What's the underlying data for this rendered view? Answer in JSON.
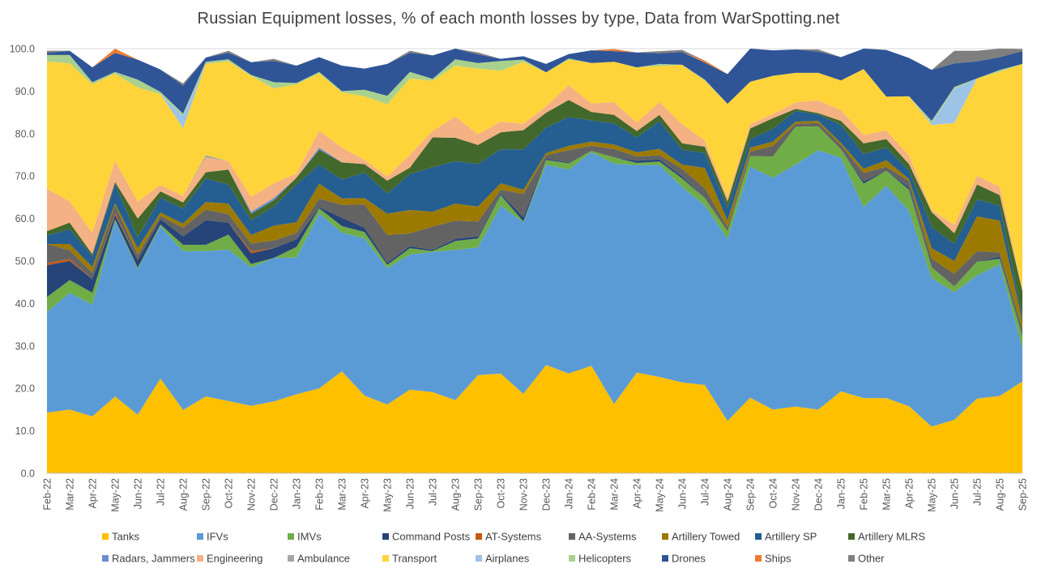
{
  "chart_data": {
    "type": "area",
    "stacked": true,
    "title": "Russian Equipment losses, % of each month losses by type, Data from WarSpotting.net",
    "xlabel": "",
    "ylabel": "",
    "ylim": [
      0,
      100
    ],
    "y_ticks": [
      "0.0",
      "10.0",
      "20.0",
      "30.0",
      "40.0",
      "50.0",
      "60.0",
      "70.0",
      "80.0",
      "90.0",
      "100.0"
    ],
    "grid": true,
    "legend_position": "bottom",
    "categories": [
      "Feb-22",
      "Mar-22",
      "Apr-22",
      "May-22",
      "Jun-22",
      "Jul-22",
      "Aug-22",
      "Sep-22",
      "Oct-22",
      "Nov-22",
      "Dec-22",
      "Jan-23",
      "Feb-23",
      "Mar-23",
      "Apr-23",
      "May-23",
      "Jun-23",
      "Jul-23",
      "Aug-23",
      "Sep-23",
      "Oct-23",
      "Nov-23",
      "Dec-23",
      "Jan-24",
      "Feb-24",
      "Mar-24",
      "Apr-24",
      "May-24",
      "Jun-24",
      "Jul-24",
      "Aug-24",
      "Sep-24",
      "Oct-24",
      "Nov-24",
      "Dec-24",
      "Jan-25",
      "Feb-25",
      "Mar-25",
      "Apr-25",
      "May-25",
      "Jun-25",
      "Jul-25",
      "Aug-25",
      "Sep-25"
    ],
    "series": [
      {
        "name": "Tanks",
        "color": "#FFC000",
        "values": [
          14.3,
          15.0,
          13.4,
          18.1,
          13.8,
          22.3,
          14.9,
          18.1,
          17.0,
          15.9,
          16.9,
          18.6,
          20.0,
          24.0,
          18.3,
          16.2,
          19.7,
          19.1,
          17.2,
          23.1,
          23.5,
          18.7,
          25.5,
          23.5,
          25.3,
          16.3,
          23.7,
          22.7,
          21.4,
          20.8,
          12.3,
          17.8,
          15.0,
          15.7,
          15.0,
          19.3,
          17.7,
          17.7,
          15.8,
          11.0,
          12.6,
          17.6,
          18.2,
          21.6
        ]
      },
      {
        "name": "IFVs",
        "color": "#5B9BD5",
        "values": [
          23.7,
          27.5,
          26.3,
          41.4,
          34.3,
          35.9,
          37.4,
          34.2,
          35.7,
          32.6,
          33.8,
          32.2,
          41.2,
          32.7,
          37.0,
          32.1,
          31.8,
          33.0,
          35.4,
          30.1,
          39.5,
          40.4,
          47.2,
          48.0,
          50.3,
          56.6,
          48.9,
          49.9,
          46.0,
          42.3,
          42.9,
          54.4,
          54.6,
          57.0,
          61.1,
          55.0,
          45.0,
          50.0,
          46.0,
          35.0,
          30.0,
          29.0,
          31.0,
          8.0
        ]
      },
      {
        "name": "IMVs",
        "color": "#70AD47",
        "values": [
          3.5,
          3.0,
          2.8,
          0.3,
          0.3,
          0.4,
          1.5,
          1.5,
          3.5,
          0.8,
          0,
          2.5,
          1.2,
          1.5,
          1.5,
          0.8,
          1.5,
          0.2,
          2.1,
          2.1,
          2.5,
          0.2,
          1.1,
          1.5,
          0.3,
          1.5,
          0.5,
          0.8,
          2.0,
          1.7,
          1.8,
          2.5,
          5.0,
          8.9,
          5.6,
          2.0,
          5.5,
          3.5,
          5.0,
          2.5,
          1.4,
          3.2,
          1.3,
          2.8
        ]
      },
      {
        "name": "Command Posts",
        "color": "#264478",
        "values": [
          7.5,
          4.5,
          3.2,
          1.0,
          1.8,
          1.2,
          2.0,
          5.8,
          2.8,
          2.5,
          2.3,
          1.8,
          0.3,
          2.0,
          1.0,
          0.5,
          0.5,
          0.3,
          0.5,
          0.5,
          0.3,
          1.0,
          0.3,
          0.2,
          0,
          0,
          0.5,
          0.5,
          0.5,
          0,
          0,
          0,
          0,
          0,
          0,
          0,
          0.5,
          0,
          0.5,
          0,
          0,
          0,
          0.5,
          0.5
        ]
      },
      {
        "name": "AT-Systems",
        "color": "#C55A11",
        "values": [
          0.5,
          0.5,
          0,
          0.5,
          0,
          0,
          0,
          0,
          0,
          0.5,
          0,
          0,
          0,
          0,
          0,
          0,
          0,
          0,
          0,
          0,
          0,
          0,
          0,
          0,
          0,
          0,
          0,
          0,
          0,
          0,
          0,
          0,
          0,
          0,
          0,
          0,
          0,
          0,
          0,
          0,
          0,
          0,
          0,
          0
        ]
      },
      {
        "name": "AA-Systems",
        "color": "#636363",
        "values": [
          4.5,
          2.0,
          1.5,
          1.8,
          1.2,
          0.8,
          2.0,
          2.5,
          2.0,
          1.8,
          1.8,
          1.5,
          2.0,
          3.0,
          5.5,
          6.5,
          3.0,
          5.5,
          4.3,
          3.5,
          1.0,
          5.5,
          0.8,
          2.9,
          1.2,
          2.0,
          1.0,
          1.0,
          1.8,
          2.3,
          1.0,
          1.0,
          2.5,
          0.7,
          0.8,
          1.0,
          2.0,
          1.0,
          1.5,
          2.0,
          3.0,
          2.5,
          1.0,
          1.0
        ]
      },
      {
        "name": "Artillery Towed",
        "color": "#9C7A00",
        "values": [
          0,
          1.5,
          1.4,
          0.5,
          1.6,
          0.8,
          1.0,
          1.8,
          2.5,
          2.0,
          3.5,
          2.5,
          3.5,
          1.5,
          1.5,
          5.0,
          5.5,
          3.5,
          4.0,
          3.5,
          1.5,
          1.0,
          0.5,
          1.0,
          1.0,
          1.0,
          1.0,
          1.5,
          1.0,
          4.8,
          1.5,
          1.0,
          1.0,
          0.5,
          0.5,
          0.5,
          1.0,
          1.5,
          0.5,
          2.5,
          3.0,
          8.2,
          7.5,
          2.0
        ]
      },
      {
        "name": "Artillery SP",
        "color": "#255E91",
        "values": [
          2.0,
          3.5,
          2.5,
          4.5,
          2.5,
          3.5,
          3.5,
          5.5,
          4.5,
          3.5,
          4.5,
          9.0,
          4.5,
          4.5,
          6.0,
          4.8,
          8.5,
          10.5,
          10.0,
          10.0,
          8.0,
          9.5,
          6.0,
          6.8,
          5.0,
          5.0,
          3.5,
          6.5,
          3.5,
          3.5,
          3.0,
          2.0,
          3.0,
          2.5,
          1.5,
          4.2,
          3.5,
          3.0,
          2.0,
          5.0,
          4.0,
          4.0,
          3.5,
          1.0
        ]
      },
      {
        "name": "Artillery MLRS",
        "color": "#43682B",
        "values": [
          1.0,
          1.5,
          0.5,
          0.5,
          4.5,
          1.5,
          1.5,
          1.5,
          3.5,
          1.5,
          1.5,
          1.5,
          3.5,
          4.0,
          2.0,
          3.0,
          1.5,
          7.0,
          5.5,
          4.5,
          4.0,
          4.5,
          3.5,
          4.0,
          2.0,
          2.0,
          1.5,
          1.5,
          1.5,
          1.5,
          1.5,
          2.5,
          2.5,
          0.5,
          0.3,
          1.0,
          2.5,
          2.0,
          1.5,
          3.5,
          2.5,
          3.5,
          2.5,
          6.0
        ]
      },
      {
        "name": "Radars, Jammers",
        "color": "#698ED0",
        "values": [
          0,
          0,
          0,
          0,
          0,
          0,
          0,
          0,
          0,
          0.5,
          0.5,
          0,
          0.5,
          0,
          0,
          0,
          0,
          0,
          0,
          0,
          0,
          0,
          0,
          0,
          0,
          0,
          0,
          0,
          0,
          0,
          0,
          0,
          0,
          0,
          0,
          0,
          0,
          0,
          0,
          0,
          0,
          0,
          0,
          0
        ]
      },
      {
        "name": "Engineering",
        "color": "#F4B183",
        "values": [
          10.0,
          5.0,
          5.0,
          5.0,
          4.0,
          1.5,
          1.5,
          3.5,
          2.0,
          3.5,
          3.5,
          1.0,
          4.0,
          3.5,
          1.0,
          1.0,
          3.0,
          1.5,
          5.0,
          2.5,
          2.5,
          1.5,
          1.5,
          3.5,
          2.0,
          3.0,
          2.0,
          3.0,
          4.5,
          1.5,
          1.0,
          1.0,
          1.0,
          1.5,
          3.0,
          2.5,
          2.0,
          2.0,
          2.0,
          0.5,
          2.0,
          2.0,
          2.0,
          0.5
        ]
      },
      {
        "name": "Ambulance",
        "color": "#A5A5A5",
        "values": [
          0,
          0,
          0,
          0,
          0,
          0,
          0,
          0.5,
          0,
          0,
          0,
          0,
          0,
          0,
          0,
          0,
          0,
          0,
          0,
          0,
          0,
          0,
          0,
          0,
          0,
          0,
          0,
          0,
          0,
          0,
          0,
          0,
          0,
          0,
          0,
          0,
          0,
          0,
          0,
          0,
          0,
          0,
          0,
          0
        ]
      },
      {
        "name": "Transport",
        "color": "#FFD43B",
        "values": [
          30.0,
          32.5,
          35.0,
          20.5,
          26.9,
          21.4,
          16.0,
          21.5,
          23.5,
          28.5,
          22.3,
          21.0,
          13.5,
          13.0,
          15.0,
          17.0,
          18.0,
          11.8,
          12.0,
          15.5,
          12.0,
          14.6,
          8.0,
          6.0,
          9.5,
          9.5,
          13.0,
          8.5,
          14.0,
          14.0,
          22.0,
          10.0,
          9.0,
          7.0,
          6.5,
          7.0,
          15.5,
          8.0,
          14.0,
          20.0,
          24.0,
          23.0,
          27.0,
          53.0
        ]
      },
      {
        "name": "Airplanes",
        "color": "#9DC3E6",
        "values": [
          0,
          0,
          0,
          0,
          0,
          0,
          2.9,
          0,
          0,
          0,
          0,
          0,
          0,
          0,
          0,
          0,
          0,
          0,
          0,
          0,
          0,
          0,
          0,
          0,
          0,
          0,
          0,
          0,
          0,
          0,
          0,
          0,
          0,
          0,
          0,
          0,
          0,
          0,
          0,
          0.5,
          8.0,
          0,
          0,
          0
        ]
      },
      {
        "name": "Helicopters",
        "color": "#A9D18E",
        "values": [
          1.5,
          2.0,
          0.5,
          0.4,
          1.8,
          0.5,
          0.5,
          0.5,
          0.5,
          0.2,
          1.5,
          0.3,
          0.3,
          0.3,
          1.5,
          2.0,
          1.5,
          0.5,
          1.5,
          1.3,
          2.3,
          0.5,
          0,
          0.3,
          0,
          0,
          0,
          0.5,
          0,
          0.3,
          0,
          0,
          0,
          0,
          0,
          0,
          0,
          0,
          0,
          0.5,
          0.5,
          0,
          0.5,
          0
        ]
      },
      {
        "name": "Drones",
        "color": "#2F5597",
        "values": [
          0.5,
          1.0,
          3.5,
          4.5,
          4.7,
          5.3,
          6.6,
          1.0,
          1.5,
          3.0,
          5.0,
          4.1,
          3.5,
          6.0,
          5.0,
          7.5,
          4.5,
          5.5,
          4.3,
          2.0,
          0.5,
          0.8,
          2.0,
          1.0,
          3.0,
          2.5,
          3.5,
          2.5,
          3.0,
          4.0,
          7.0,
          7.8,
          6.0,
          5.5,
          5.0,
          5.5,
          5.8,
          11.0,
          9.0,
          12.0,
          5.5,
          4.0,
          3.0,
          3.0
        ]
      },
      {
        "name": "Ships",
        "color": "#ED7D31",
        "values": [
          0,
          0,
          0,
          1.0,
          0,
          0,
          0,
          0,
          0,
          0,
          0,
          0,
          0,
          0,
          0,
          0,
          0,
          0,
          0,
          0,
          0,
          0,
          0,
          0,
          0,
          0.5,
          0,
          0,
          0,
          0.5,
          0,
          0,
          0,
          0,
          0,
          0,
          0,
          0,
          0,
          0,
          0,
          0,
          0,
          0
        ]
      },
      {
        "name": "Other",
        "color": "#7F7F7F",
        "values": [
          0.5,
          0,
          0,
          0,
          0,
          0,
          0.5,
          0,
          0.5,
          0,
          0.5,
          0,
          0,
          0,
          0,
          0,
          0.5,
          0,
          0,
          0.5,
          0,
          0,
          0,
          0,
          0,
          0,
          0,
          0.5,
          0.5,
          0,
          0,
          0,
          0,
          0,
          0.5,
          0,
          0,
          0,
          0,
          0,
          3.0,
          2.5,
          2.0,
          0.5
        ]
      }
    ]
  }
}
